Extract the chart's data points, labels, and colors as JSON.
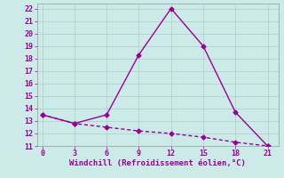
{
  "line1_x": [
    0,
    3,
    6,
    9,
    12,
    15,
    18,
    21
  ],
  "line1_y": [
    13.5,
    12.8,
    13.5,
    18.3,
    22.0,
    19.0,
    13.7,
    11.0
  ],
  "line2_x": [
    0,
    3,
    6,
    9,
    12,
    15,
    18,
    21
  ],
  "line2_y": [
    13.5,
    12.8,
    12.5,
    12.2,
    12.0,
    11.7,
    11.3,
    11.0
  ],
  "color": "#990099",
  "xlabel": "Windchill (Refroidissement éolien,°C)",
  "xlim": [
    -0.5,
    22
  ],
  "ylim": [
    11,
    22.4
  ],
  "xticks": [
    0,
    3,
    6,
    9,
    12,
    15,
    18,
    21
  ],
  "yticks": [
    11,
    12,
    13,
    14,
    15,
    16,
    17,
    18,
    19,
    20,
    21,
    22
  ],
  "bg_color": "#cceae7",
  "grid_color": "#b0ccc9",
  "line_width": 1.0,
  "marker": "D",
  "marker_size": 2.5
}
